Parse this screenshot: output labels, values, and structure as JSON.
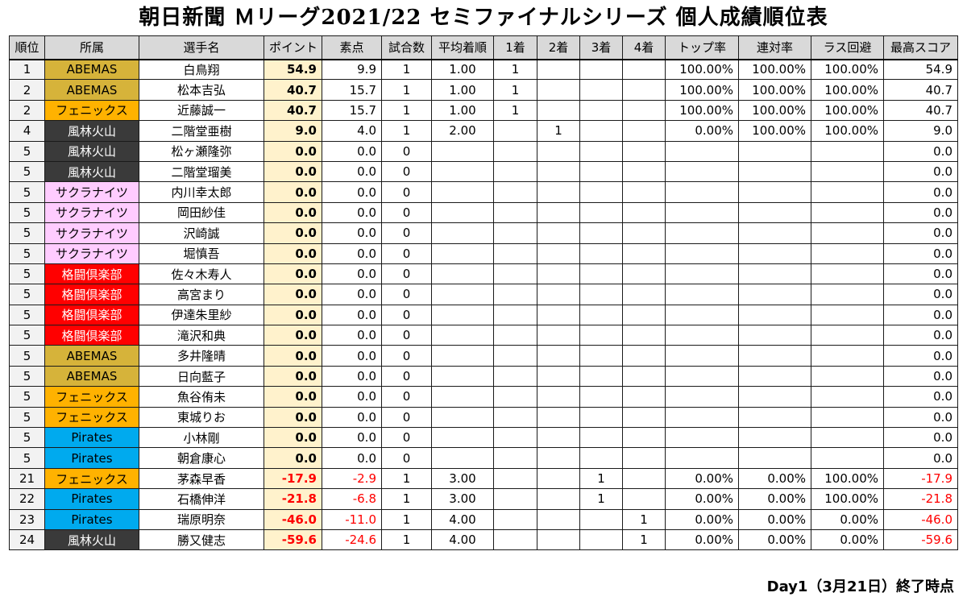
{
  "title": "朝日新聞 Ｍリーグ2021/22 セミファイナルシリーズ 個人成績順位表",
  "headers": [
    "順位",
    "所属",
    "選手名",
    "ポイント",
    "素点",
    "試合数",
    "平均着順",
    "1着",
    "2着",
    "3着",
    "4着",
    "トップ率",
    "連対率",
    "ラス回避",
    "最高スコア"
  ],
  "rows": [
    {
      "rank": "1",
      "team": "ABEMAS",
      "team_class": "abemas",
      "name": "白鳥翔",
      "pts": "54.9",
      "raw": "9.9",
      "games": "1",
      "avg": "1.00",
      "p1": "1",
      "p2": "",
      "p3": "",
      "p4": "",
      "top": "100.00%",
      "rentai": "100.00%",
      "lasavoid": "100.00%",
      "best": "54.9"
    },
    {
      "rank": "2",
      "team": "ABEMAS",
      "team_class": "abemas",
      "name": "松本吉弘",
      "pts": "40.7",
      "raw": "15.7",
      "games": "1",
      "avg": "1.00",
      "p1": "1",
      "p2": "",
      "p3": "",
      "p4": "",
      "top": "100.00%",
      "rentai": "100.00%",
      "lasavoid": "100.00%",
      "best": "40.7"
    },
    {
      "rank": "2",
      "team": "フェニックス",
      "team_class": "phoenix",
      "name": "近藤誠一",
      "pts": "40.7",
      "raw": "15.7",
      "games": "1",
      "avg": "1.00",
      "p1": "1",
      "p2": "",
      "p3": "",
      "p4": "",
      "top": "100.00%",
      "rentai": "100.00%",
      "lasavoid": "100.00%",
      "best": "40.7"
    },
    {
      "rank": "4",
      "team": "風林火山",
      "team_class": "furin",
      "name": "二階堂亜樹",
      "pts": "9.0",
      "raw": "4.0",
      "games": "1",
      "avg": "2.00",
      "p1": "",
      "p2": "1",
      "p3": "",
      "p4": "",
      "top": "0.00%",
      "rentai": "100.00%",
      "lasavoid": "100.00%",
      "best": "9.0"
    },
    {
      "rank": "5",
      "team": "風林火山",
      "team_class": "furin",
      "name": "松ヶ瀬隆弥",
      "pts": "0.0",
      "raw": "0.0",
      "games": "0",
      "avg": "",
      "p1": "",
      "p2": "",
      "p3": "",
      "p4": "",
      "top": "",
      "rentai": "",
      "lasavoid": "",
      "best": "0.0"
    },
    {
      "rank": "5",
      "team": "風林火山",
      "team_class": "furin",
      "name": "二階堂瑠美",
      "pts": "0.0",
      "raw": "0.0",
      "games": "0",
      "avg": "",
      "p1": "",
      "p2": "",
      "p3": "",
      "p4": "",
      "top": "",
      "rentai": "",
      "lasavoid": "",
      "best": "0.0"
    },
    {
      "rank": "5",
      "team": "サクラナイツ",
      "team_class": "sakura",
      "name": "内川幸太郎",
      "pts": "0.0",
      "raw": "0.0",
      "games": "0",
      "avg": "",
      "p1": "",
      "p2": "",
      "p3": "",
      "p4": "",
      "top": "",
      "rentai": "",
      "lasavoid": "",
      "best": "0.0"
    },
    {
      "rank": "5",
      "team": "サクラナイツ",
      "team_class": "sakura",
      "name": "岡田紗佳",
      "pts": "0.0",
      "raw": "0.0",
      "games": "0",
      "avg": "",
      "p1": "",
      "p2": "",
      "p3": "",
      "p4": "",
      "top": "",
      "rentai": "",
      "lasavoid": "",
      "best": "0.0"
    },
    {
      "rank": "5",
      "team": "サクラナイツ",
      "team_class": "sakura",
      "name": "沢崎誠",
      "pts": "0.0",
      "raw": "0.0",
      "games": "0",
      "avg": "",
      "p1": "",
      "p2": "",
      "p3": "",
      "p4": "",
      "top": "",
      "rentai": "",
      "lasavoid": "",
      "best": "0.0"
    },
    {
      "rank": "5",
      "team": "サクラナイツ",
      "team_class": "sakura",
      "name": "堀慎吾",
      "pts": "0.0",
      "raw": "0.0",
      "games": "0",
      "avg": "",
      "p1": "",
      "p2": "",
      "p3": "",
      "p4": "",
      "top": "",
      "rentai": "",
      "lasavoid": "",
      "best": "0.0"
    },
    {
      "rank": "5",
      "team": "格闘倶楽部",
      "team_class": "kakuto",
      "name": "佐々木寿人",
      "pts": "0.0",
      "raw": "0.0",
      "games": "0",
      "avg": "",
      "p1": "",
      "p2": "",
      "p3": "",
      "p4": "",
      "top": "",
      "rentai": "",
      "lasavoid": "",
      "best": "0.0"
    },
    {
      "rank": "5",
      "team": "格闘倶楽部",
      "team_class": "kakuto",
      "name": "高宮まり",
      "pts": "0.0",
      "raw": "0.0",
      "games": "0",
      "avg": "",
      "p1": "",
      "p2": "",
      "p3": "",
      "p4": "",
      "top": "",
      "rentai": "",
      "lasavoid": "",
      "best": "0.0"
    },
    {
      "rank": "5",
      "team": "格闘倶楽部",
      "team_class": "kakuto",
      "name": "伊達朱里紗",
      "pts": "0.0",
      "raw": "0.0",
      "games": "0",
      "avg": "",
      "p1": "",
      "p2": "",
      "p3": "",
      "p4": "",
      "top": "",
      "rentai": "",
      "lasavoid": "",
      "best": "0.0"
    },
    {
      "rank": "5",
      "team": "格闘倶楽部",
      "team_class": "kakuto",
      "name": "滝沢和典",
      "pts": "0.0",
      "raw": "0.0",
      "games": "0",
      "avg": "",
      "p1": "",
      "p2": "",
      "p3": "",
      "p4": "",
      "top": "",
      "rentai": "",
      "lasavoid": "",
      "best": "0.0"
    },
    {
      "rank": "5",
      "team": "ABEMAS",
      "team_class": "abemas",
      "name": "多井隆晴",
      "pts": "0.0",
      "raw": "0.0",
      "games": "0",
      "avg": "",
      "p1": "",
      "p2": "",
      "p3": "",
      "p4": "",
      "top": "",
      "rentai": "",
      "lasavoid": "",
      "best": "0.0"
    },
    {
      "rank": "5",
      "team": "ABEMAS",
      "team_class": "abemas",
      "name": "日向藍子",
      "pts": "0.0",
      "raw": "0.0",
      "games": "0",
      "avg": "",
      "p1": "",
      "p2": "",
      "p3": "",
      "p4": "",
      "top": "",
      "rentai": "",
      "lasavoid": "",
      "best": "0.0"
    },
    {
      "rank": "5",
      "team": "フェニックス",
      "team_class": "phoenix",
      "name": "魚谷侑未",
      "pts": "0.0",
      "raw": "0.0",
      "games": "0",
      "avg": "",
      "p1": "",
      "p2": "",
      "p3": "",
      "p4": "",
      "top": "",
      "rentai": "",
      "lasavoid": "",
      "best": "0.0"
    },
    {
      "rank": "5",
      "team": "フェニックス",
      "team_class": "phoenix",
      "name": "東城りお",
      "pts": "0.0",
      "raw": "0.0",
      "games": "0",
      "avg": "",
      "p1": "",
      "p2": "",
      "p3": "",
      "p4": "",
      "top": "",
      "rentai": "",
      "lasavoid": "",
      "best": "0.0"
    },
    {
      "rank": "5",
      "team": "Pirates",
      "team_class": "pirates",
      "name": "小林剛",
      "pts": "0.0",
      "raw": "0.0",
      "games": "0",
      "avg": "",
      "p1": "",
      "p2": "",
      "p3": "",
      "p4": "",
      "top": "",
      "rentai": "",
      "lasavoid": "",
      "best": "0.0"
    },
    {
      "rank": "5",
      "team": "Pirates",
      "team_class": "pirates",
      "name": "朝倉康心",
      "pts": "0.0",
      "raw": "0.0",
      "games": "0",
      "avg": "",
      "p1": "",
      "p2": "",
      "p3": "",
      "p4": "",
      "top": "",
      "rentai": "",
      "lasavoid": "",
      "best": "0.0"
    },
    {
      "rank": "21",
      "team": "フェニックス",
      "team_class": "phoenix",
      "name": "茅森早香",
      "pts": "-17.9",
      "raw": "-2.9",
      "games": "1",
      "avg": "3.00",
      "p1": "",
      "p2": "",
      "p3": "1",
      "p4": "",
      "top": "0.00%",
      "rentai": "0.00%",
      "lasavoid": "100.00%",
      "best": "-17.9"
    },
    {
      "rank": "22",
      "team": "Pirates",
      "team_class": "pirates",
      "name": "石橋伸洋",
      "pts": "-21.8",
      "raw": "-6.8",
      "games": "1",
      "avg": "3.00",
      "p1": "",
      "p2": "",
      "p3": "1",
      "p4": "",
      "top": "0.00%",
      "rentai": "0.00%",
      "lasavoid": "100.00%",
      "best": "-21.8"
    },
    {
      "rank": "23",
      "team": "Pirates",
      "team_class": "pirates",
      "name": "瑞原明奈",
      "pts": "-46.0",
      "raw": "-11.0",
      "games": "1",
      "avg": "4.00",
      "p1": "",
      "p2": "",
      "p3": "",
      "p4": "1",
      "top": "0.00%",
      "rentai": "0.00%",
      "lasavoid": "0.00%",
      "best": "-46.0"
    },
    {
      "rank": "24",
      "team": "風林火山",
      "team_class": "furin",
      "name": "勝又健志",
      "pts": "-59.6",
      "raw": "-24.6",
      "games": "1",
      "avg": "4.00",
      "p1": "",
      "p2": "",
      "p3": "",
      "p4": "1",
      "top": "0.00%",
      "rentai": "0.00%",
      "lasavoid": "0.00%",
      "best": "-59.6"
    }
  ],
  "footer": "Day1（3月21日）終了時点"
}
